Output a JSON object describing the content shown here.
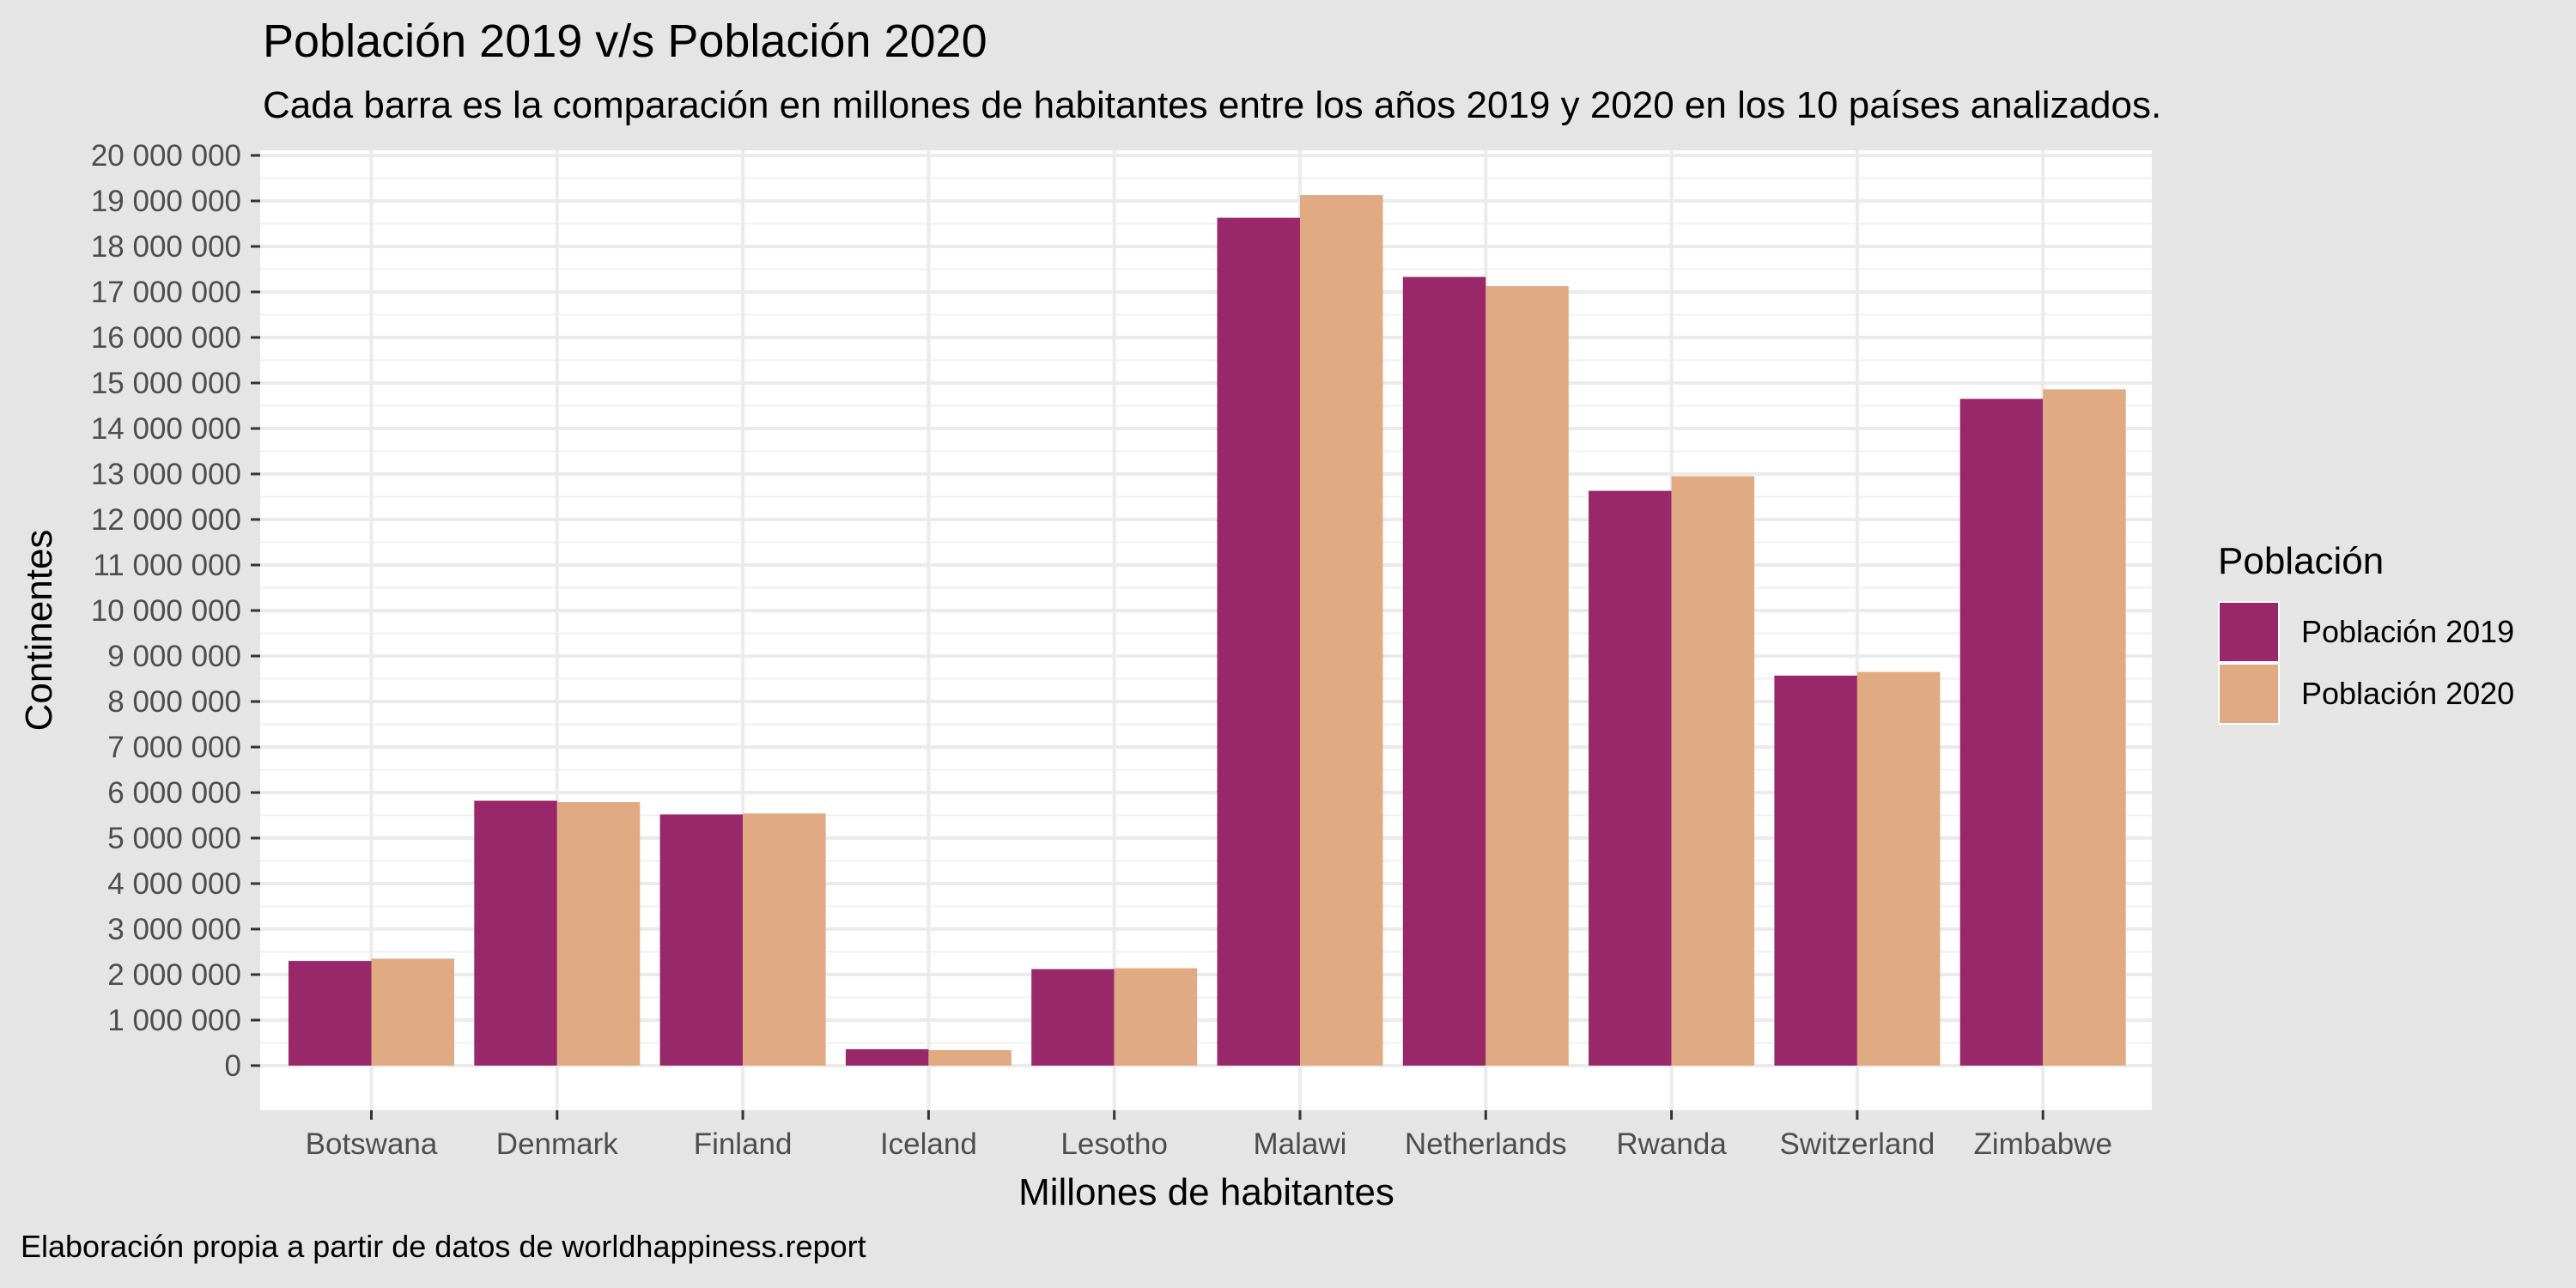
{
  "chart_data": {
    "type": "bar",
    "title": "Población 2019 v/s Población 2020",
    "subtitle": "Cada barra es la comparación en millones de habitantes entre los años 2019 y 2020 en los 10 países analizados.",
    "caption": "Elaboración propia a partir de datos de worldhappiness.report",
    "xlabel": "Millones de habitantes",
    "ylabel": "Continentes",
    "legend_title": "Población",
    "legend_position": "right",
    "grid": true,
    "ylim": [
      0,
      20000000
    ],
    "y_ticks": [
      0,
      1000000,
      2000000,
      3000000,
      4000000,
      5000000,
      6000000,
      7000000,
      8000000,
      9000000,
      10000000,
      11000000,
      12000000,
      13000000,
      14000000,
      15000000,
      16000000,
      17000000,
      18000000,
      19000000,
      20000000
    ],
    "y_tick_labels": [
      "0",
      "1 000 000",
      "2 000 000",
      "3 000 000",
      "4 000 000",
      "5 000 000",
      "6 000 000",
      "7 000 000",
      "8 000 000",
      "9 000 000",
      "10 000 000",
      "11 000 000",
      "12 000 000",
      "13 000 000",
      "14 000 000",
      "15 000 000",
      "16 000 000",
      "17 000 000",
      "18 000 000",
      "19 000 000",
      "20 000 000"
    ],
    "categories": [
      "Botswana",
      "Denmark",
      "Finland",
      "Iceland",
      "Lesotho",
      "Malawi",
      "Netherlands",
      "Rwanda",
      "Switzerland",
      "Zimbabwe"
    ],
    "series": [
      {
        "name": "Población 2019",
        "color": "#99286a",
        "values": [
          2300000,
          5820000,
          5520000,
          360000,
          2120000,
          18630000,
          17330000,
          12630000,
          8570000,
          14650000
        ]
      },
      {
        "name": "Población 2020",
        "color": "#e0aa83",
        "values": [
          2350000,
          5790000,
          5540000,
          340000,
          2140000,
          19130000,
          17130000,
          12950000,
          8650000,
          14860000
        ]
      }
    ]
  }
}
